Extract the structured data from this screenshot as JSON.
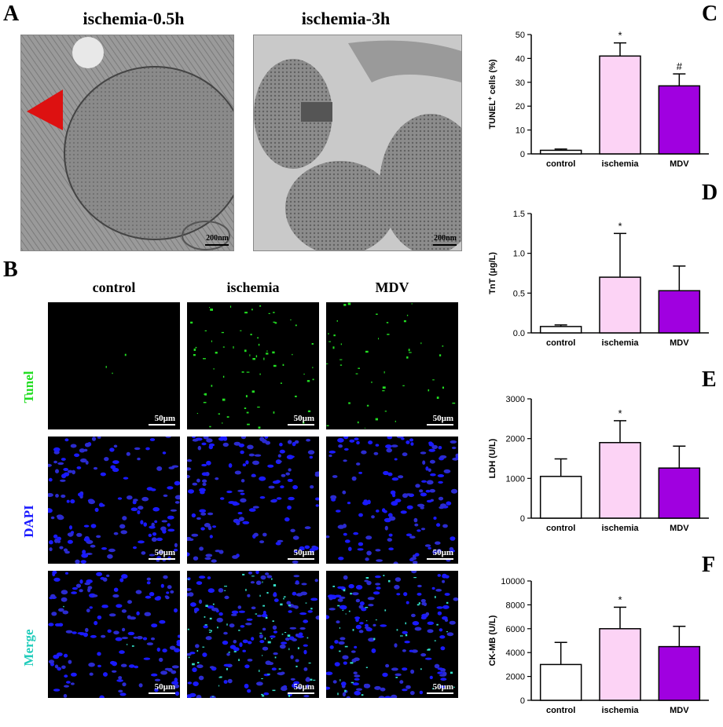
{
  "panels": {
    "A": {
      "letter": "A",
      "titles": [
        "ischemia-0.5h",
        "ischemia-3h"
      ],
      "scales": [
        "200nm",
        "200nm"
      ]
    },
    "B": {
      "letter": "B",
      "columns": [
        "control",
        "ischemia",
        "MDV"
      ],
      "rows": [
        "Tunel",
        "DAPI",
        "Merge"
      ],
      "scale": "50μm"
    },
    "C": {
      "letter": "C"
    },
    "D": {
      "letter": "D"
    },
    "E": {
      "letter": "E"
    },
    "F": {
      "letter": "F"
    }
  },
  "colors": {
    "control": "#ffffff",
    "ischemia": "#fcd3f5",
    "mdv": "#a000e0",
    "tunel_label": "#22dd22",
    "dapi_label": "#1a1aff",
    "merge_label": "#22ccbb",
    "arrowhead": "#dd1111"
  },
  "chart_data": [
    {
      "type": "bar",
      "id": "C",
      "categories": [
        "control",
        "ischemia",
        "MDV"
      ],
      "values": [
        1.5,
        41,
        28.5
      ],
      "errors": [
        0.5,
        5.5,
        5
      ],
      "ylabel_main": "TUNEL",
      "ylabel_sup": "+",
      "ylabel_rest": " cells (%)",
      "ylim": [
        0,
        50
      ],
      "yticks": [
        0,
        10,
        20,
        30,
        40,
        50
      ],
      "annotations": [
        "",
        "*",
        "#"
      ]
    },
    {
      "type": "bar",
      "id": "D",
      "categories": [
        "control",
        "ischemia",
        "MDV"
      ],
      "values": [
        0.08,
        0.7,
        0.53
      ],
      "errors": [
        0.02,
        0.55,
        0.31
      ],
      "ylabel": "TnT (μg/L)",
      "ylim": [
        0,
        1.5
      ],
      "yticks": [
        0.0,
        0.5,
        1.0,
        1.5
      ],
      "ytick_labels": [
        "0.0",
        "0.5",
        "1.0",
        "1.5"
      ],
      "annotations": [
        "",
        "*",
        ""
      ]
    },
    {
      "type": "bar",
      "id": "E",
      "categories": [
        "control",
        "ischemia",
        "MDV"
      ],
      "values": [
        1050,
        1900,
        1260
      ],
      "errors": [
        440,
        550,
        550
      ],
      "ylabel": "LDH (U/L)",
      "ylim": [
        0,
        3000
      ],
      "yticks": [
        0,
        1000,
        2000,
        3000
      ],
      "ytick_labels": [
        "0",
        "1000",
        "2000",
        "3000"
      ],
      "annotations": [
        "",
        "*",
        ""
      ]
    },
    {
      "type": "bar",
      "id": "F",
      "categories": [
        "control",
        "ischemia",
        "MDV"
      ],
      "values": [
        3000,
        6000,
        4500
      ],
      "errors": [
        1850,
        1800,
        1700
      ],
      "ylabel": "CK-MB (U/L)",
      "ylim": [
        0,
        10000
      ],
      "yticks": [
        0,
        2000,
        4000,
        6000,
        8000,
        10000
      ],
      "ytick_labels": [
        "0",
        "2000",
        "4000",
        "6000",
        "8000",
        "10000"
      ],
      "annotations": [
        "",
        "*",
        ""
      ]
    }
  ]
}
